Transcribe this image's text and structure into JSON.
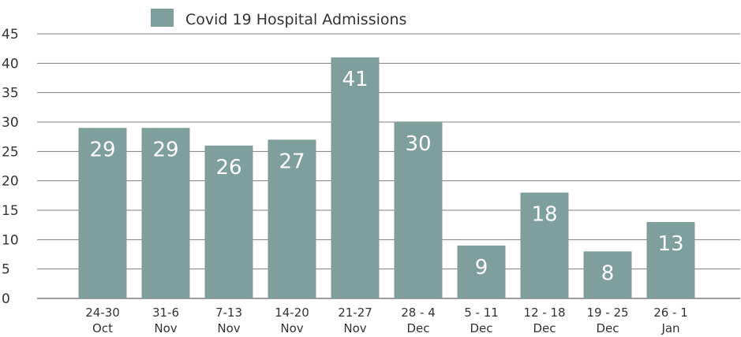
{
  "chart_data": {
    "type": "bar",
    "categories": [
      [
        "24-30",
        "Oct"
      ],
      [
        "31-6",
        "Nov"
      ],
      [
        "7-13",
        "Nov"
      ],
      [
        "14-20",
        "Nov"
      ],
      [
        "21-27",
        "Nov"
      ],
      [
        "28 - 4",
        "Dec"
      ],
      [
        "5 - 11",
        "Dec"
      ],
      [
        "12 - 18",
        "Dec"
      ],
      [
        "19 - 25",
        "Dec"
      ],
      [
        "26 - 1",
        "Jan"
      ]
    ],
    "series": [
      {
        "name": "Covid 19 Hospital Admissions",
        "values": [
          29,
          29,
          26,
          27,
          41,
          30,
          9,
          18,
          8,
          13
        ]
      }
    ],
    "data_labels": [
      "29",
      "29",
      "26",
      "27",
      "41",
      "30",
      "9",
      "18",
      "8",
      "13"
    ],
    "y_ticks": [
      "0",
      "5",
      "10",
      "15",
      "20",
      "25",
      "30",
      "35",
      "40",
      "45"
    ],
    "ylim": [
      0,
      45
    ],
    "grid": true,
    "legend_position": "top",
    "colors": {
      "bar": "#7f9f9c",
      "grid": "#7f7f7f",
      "text": "#333333"
    }
  }
}
